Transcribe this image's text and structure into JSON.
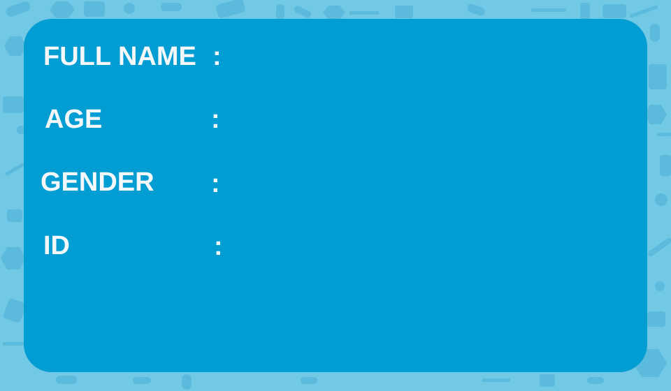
{
  "card": {
    "background_color": "#019dd3",
    "page_background_color": "#72c9e6",
    "fields": [
      {
        "label": "FULL NAME",
        "separator": ":",
        "value": ""
      },
      {
        "label": "AGE",
        "separator": ":",
        "value": ""
      },
      {
        "label": "GENDER",
        "separator": ":",
        "value": ""
      },
      {
        "label": "ID",
        "separator": ":",
        "value": ""
      }
    ]
  },
  "background_icons": [
    "syringe-icon",
    "pill-icon",
    "capsule-icon",
    "medicine-bottle-icon",
    "first-aid-kit-icon",
    "thermometer-icon",
    "heart-pulse-icon",
    "hexagon-shape"
  ]
}
